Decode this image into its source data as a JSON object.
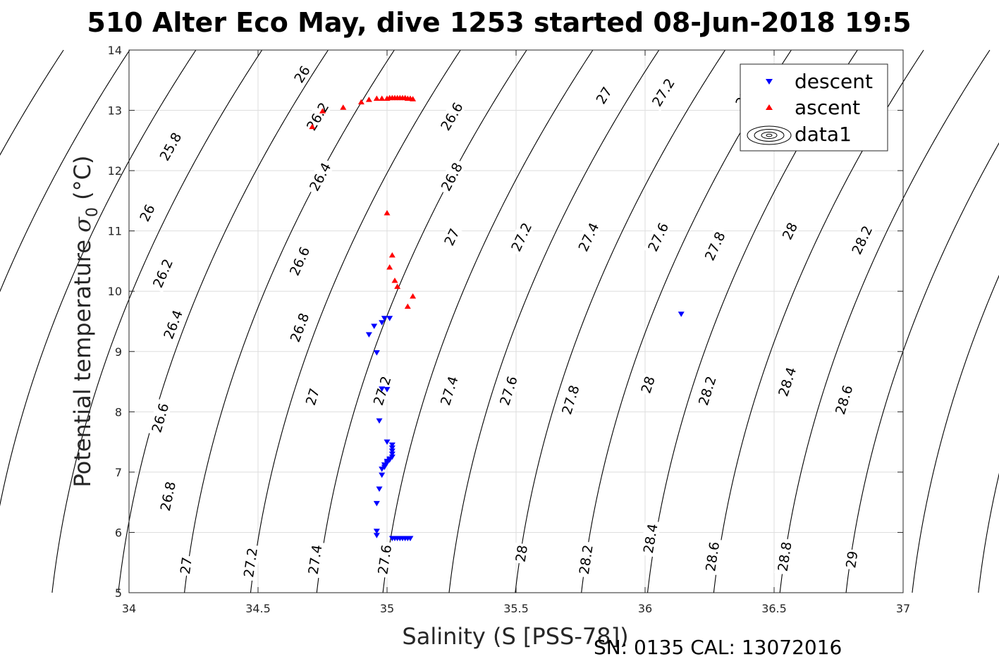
{
  "title": "510 Alter Eco May, dive 1253 started 08-Jun-2018 19:5",
  "footer": "SN: 0135  CAL: 13072016",
  "chart_data": {
    "type": "scatter",
    "xlabel": "Salinity (S [PSS-78])",
    "ylabel_main": "Potential temperature ",
    "ylabel_sigma": "σ",
    "ylabel_sub": "0",
    "ylabel_unit": " (°C)",
    "xlim": [
      34,
      37
    ],
    "ylim": [
      5,
      14
    ],
    "xticks": [
      "34",
      "34.5",
      "35",
      "35.5",
      "36",
      "36.5",
      "37"
    ],
    "yticks": [
      "5",
      "6",
      "7",
      "8",
      "9",
      "10",
      "11",
      "12",
      "13",
      "14"
    ],
    "grid": true,
    "legend": {
      "position": "top-right",
      "entries": [
        "descent",
        "ascent",
        "data1"
      ]
    },
    "colors": {
      "descent": "#0000ff",
      "ascent": "#ff0000",
      "contour": "#000000"
    },
    "series": [
      {
        "name": "descent",
        "marker": "triangle-down",
        "x": [
          34.93,
          34.95,
          34.96,
          34.98,
          34.99,
          35.01,
          35.0,
          34.98,
          34.97,
          35.0,
          35.02,
          35.02,
          35.02,
          35.02,
          35.02,
          35.01,
          35.01,
          35.0,
          35.0,
          34.99,
          34.99,
          34.98,
          34.98,
          34.97,
          34.96,
          34.96,
          34.96,
          35.02,
          35.03,
          35.04,
          35.05,
          35.06,
          35.07,
          35.08,
          35.09,
          36.14
        ],
        "y": [
          9.28,
          9.42,
          8.98,
          9.48,
          9.55,
          9.55,
          8.37,
          8.38,
          7.85,
          7.5,
          7.45,
          7.4,
          7.35,
          7.3,
          7.25,
          7.22,
          7.2,
          7.18,
          7.15,
          7.12,
          7.08,
          7.05,
          6.95,
          6.72,
          6.48,
          6.02,
          5.95,
          5.9,
          5.9,
          5.9,
          5.9,
          5.9,
          5.9,
          5.9,
          5.9,
          9.62
        ]
      },
      {
        "name": "ascent",
        "marker": "triangle-up",
        "x": [
          34.71,
          34.75,
          34.83,
          34.9,
          34.93,
          34.96,
          34.98,
          35.0,
          35.01,
          35.02,
          35.03,
          35.04,
          35.05,
          35.06,
          35.07,
          35.08,
          35.09,
          35.1,
          35.0,
          35.02,
          35.01,
          35.03,
          35.04,
          35.08,
          35.1
        ],
        "y": [
          12.73,
          12.99,
          13.05,
          13.14,
          13.18,
          13.2,
          13.2,
          13.2,
          13.21,
          13.21,
          13.21,
          13.21,
          13.21,
          13.21,
          13.21,
          13.2,
          13.2,
          13.19,
          11.3,
          10.6,
          10.4,
          10.18,
          10.08,
          9.75,
          9.92
        ]
      }
    ],
    "contours": {
      "name": "data1",
      "description_levels": [
        25.8,
        26,
        26.2,
        26.4,
        26.6,
        26.8,
        27,
        27.2,
        27.4,
        27.6,
        27.8,
        28,
        28.2,
        28.4,
        28.6,
        28.8,
        29
      ],
      "label_values": [
        "25.8",
        "26",
        "26.2",
        "26.4",
        "26.6",
        "26.8",
        "27",
        "27.2",
        "27.4",
        "27.6",
        "27.8",
        "28",
        "28.2",
        "28.4",
        "28.6",
        "28.8",
        "29"
      ],
      "labels": [
        {
          "text": "25.8",
          "s": 34.16,
          "t": 12.4
        },
        {
          "text": "26",
          "s": 34.07,
          "t": 11.3
        },
        {
          "text": "26.2",
          "s": 34.13,
          "t": 10.3
        },
        {
          "text": "26.4",
          "s": 34.17,
          "t": 9.45
        },
        {
          "text": "26.6",
          "s": 34.12,
          "t": 7.9
        },
        {
          "text": "26.8",
          "s": 34.15,
          "t": 6.6
        },
        {
          "text": "27",
          "s": 34.22,
          "t": 5.45
        },
        {
          "text": "26",
          "s": 34.67,
          "t": 13.6
        },
        {
          "text": "26.2",
          "s": 34.73,
          "t": 12.9
        },
        {
          "text": "26.4",
          "s": 34.74,
          "t": 11.9
        },
        {
          "text": "26.6",
          "s": 34.66,
          "t": 10.5
        },
        {
          "text": "26.8",
          "s": 34.66,
          "t": 9.4
        },
        {
          "text": "27",
          "s": 34.71,
          "t": 8.25
        },
        {
          "text": "27.2",
          "s": 34.47,
          "t": 5.5
        },
        {
          "text": "26.6",
          "s": 35.25,
          "t": 12.9
        },
        {
          "text": "26.8",
          "s": 35.25,
          "t": 11.9
        },
        {
          "text": "27",
          "s": 35.25,
          "t": 10.9
        },
        {
          "text": "27.2",
          "s": 34.98,
          "t": 8.35
        },
        {
          "text": "27.4",
          "s": 34.72,
          "t": 5.55
        },
        {
          "text": "27.2",
          "s": 35.52,
          "t": 10.9
        },
        {
          "text": "27.4",
          "s": 35.24,
          "t": 8.35
        },
        {
          "text": "27.6",
          "s": 34.99,
          "t": 5.55
        },
        {
          "text": "27",
          "s": 35.84,
          "t": 13.25
        },
        {
          "text": "27.4",
          "s": 35.78,
          "t": 10.9
        },
        {
          "text": "27.6",
          "s": 35.47,
          "t": 8.35
        },
        {
          "text": "27.2",
          "s": 36.07,
          "t": 13.3
        },
        {
          "text": "27.6",
          "s": 36.05,
          "t": 10.9
        },
        {
          "text": "27.8",
          "s": 35.71,
          "t": 8.2
        },
        {
          "text": "28",
          "s": 35.52,
          "t": 5.65
        },
        {
          "text": "27.8",
          "s": 36.27,
          "t": 10.75
        },
        {
          "text": "28",
          "s": 36.01,
          "t": 8.45
        },
        {
          "text": "28.2",
          "s": 35.77,
          "t": 5.55
        },
        {
          "text": "28",
          "s": 36.56,
          "t": 11.0
        },
        {
          "text": "28.2",
          "s": 36.24,
          "t": 8.35
        },
        {
          "text": "28.4",
          "s": 36.02,
          "t": 5.9
        },
        {
          "text": "28.2",
          "s": 36.84,
          "t": 10.85
        },
        {
          "text": "28.4",
          "s": 36.55,
          "t": 8.5
        },
        {
          "text": "28.6",
          "s": 36.26,
          "t": 5.6
        },
        {
          "text": "28.6",
          "s": 36.77,
          "t": 8.2
        },
        {
          "text": "28.8",
          "s": 36.54,
          "t": 5.6
        },
        {
          "text": "29",
          "s": 36.8,
          "t": 5.55
        },
        {
          "text": "27",
          "s": 36.38,
          "t": 13.2
        }
      ]
    }
  }
}
